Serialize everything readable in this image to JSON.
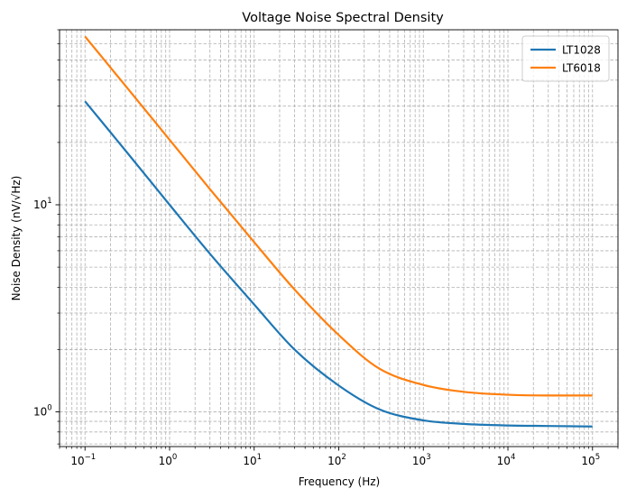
{
  "chart_data": {
    "type": "line",
    "title": "Voltage Noise Spectral Density",
    "xlabel": "Frequency (Hz)",
    "ylabel": "Noise Density (nV/√Hz)",
    "xscale": "log",
    "yscale": "log",
    "xlim": [
      0.05,
      200000
    ],
    "ylim": [
      0.68,
      70
    ],
    "grid": true,
    "grid_which": "both",
    "legend_position": "top-right",
    "x_ticks": [
      {
        "value": 0.1,
        "base": "10",
        "exp": "−1"
      },
      {
        "value": 1,
        "base": "10",
        "exp": "0"
      },
      {
        "value": 10,
        "base": "10",
        "exp": "1"
      },
      {
        "value": 100,
        "base": "10",
        "exp": "2"
      },
      {
        "value": 1000,
        "base": "10",
        "exp": "3"
      },
      {
        "value": 10000,
        "base": "10",
        "exp": "4"
      },
      {
        "value": 100000,
        "base": "10",
        "exp": "5"
      }
    ],
    "y_ticks": [
      {
        "value": 1,
        "base": "10",
        "exp": "0"
      },
      {
        "value": 10,
        "base": "10",
        "exp": "1"
      }
    ],
    "series": [
      {
        "name": "LT1028",
        "color": "#1f77b4",
        "x": [
          0.1,
          0.3,
          1,
          3,
          10,
          30,
          100,
          300,
          1000,
          3000,
          10000,
          30000,
          100000
        ],
        "y": [
          31.6,
          18.3,
          10.0,
          5.8,
          3.3,
          2.0,
          1.34,
          1.03,
          0.91,
          0.875,
          0.86,
          0.855,
          0.85
        ]
      },
      {
        "name": "LT6018",
        "color": "#ff7f0e",
        "x": [
          0.1,
          0.3,
          1,
          3,
          10,
          30,
          100,
          300,
          1000,
          3000,
          10000,
          30000,
          100000
        ],
        "y": [
          65.0,
          37.6,
          20.6,
          11.9,
          6.6,
          3.9,
          2.35,
          1.62,
          1.35,
          1.25,
          1.21,
          1.2,
          1.2
        ]
      }
    ]
  }
}
